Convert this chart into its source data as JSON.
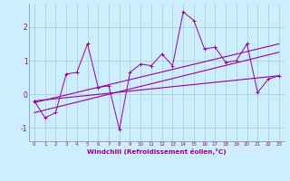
{
  "title": "",
  "xlabel": "Windchill (Refroidissement éolien,°C)",
  "ylabel": "",
  "background_color": "#cceeff",
  "line_color": "#990099",
  "xlim": [
    -0.5,
    23.5
  ],
  "ylim": [
    -1.4,
    2.7
  ],
  "xticks": [
    0,
    1,
    2,
    3,
    4,
    5,
    6,
    7,
    8,
    9,
    10,
    11,
    12,
    13,
    14,
    15,
    16,
    17,
    18,
    19,
    20,
    21,
    22,
    23
  ],
  "yticks": [
    -1,
    0,
    1,
    2
  ],
  "grid_color": "#aacccc",
  "x": [
    0,
    1,
    2,
    3,
    4,
    5,
    6,
    7,
    8,
    9,
    10,
    11,
    12,
    13,
    14,
    15,
    16,
    17,
    18,
    19,
    20,
    21,
    22,
    23
  ],
  "y_main": [
    -0.2,
    -0.7,
    -0.55,
    0.6,
    0.65,
    1.5,
    0.2,
    0.25,
    -1.05,
    0.65,
    0.9,
    0.85,
    1.2,
    0.85,
    2.45,
    2.2,
    1.35,
    1.4,
    0.95,
    1.0,
    1.5,
    0.05,
    0.45,
    0.55
  ],
  "y_line1_start": -0.55,
  "y_line1_end": 1.25,
  "y_line2_start": -0.25,
  "y_line2_end": 1.5,
  "y_line3_x": [
    0,
    23
  ],
  "y_line3_y": [
    -0.2,
    0.55
  ]
}
